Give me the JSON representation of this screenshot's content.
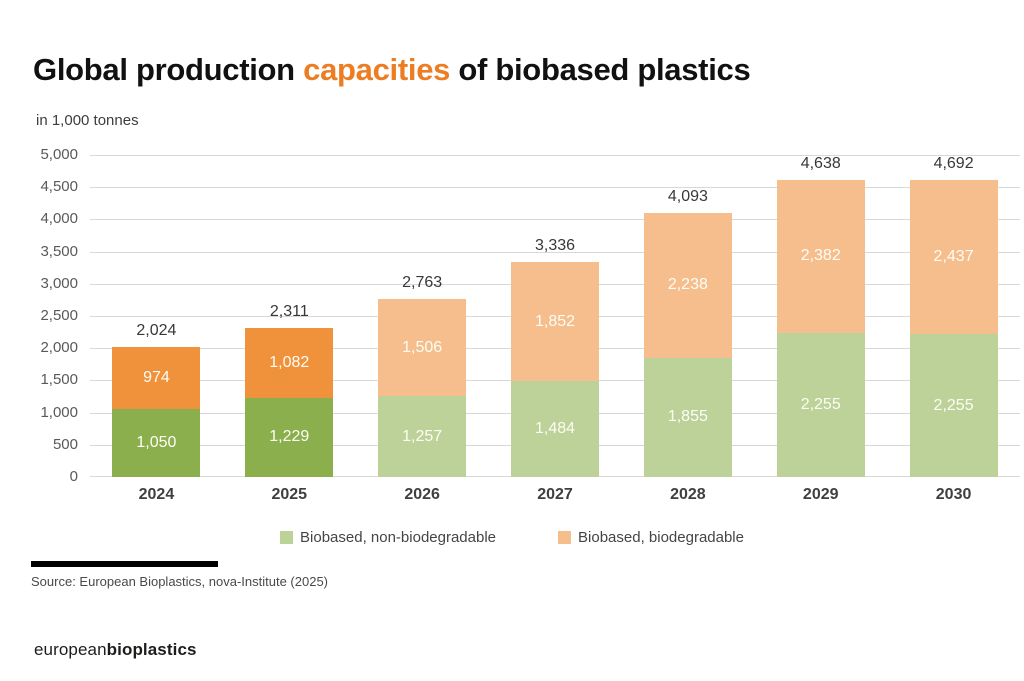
{
  "title": {
    "pre": "Global production ",
    "highlight": "capacities",
    "post": " of biobased plastics"
  },
  "subtitle": "in 1,000 tonnes",
  "colors": {
    "accent_orange": "#ED7D23",
    "actual_green": "#8CAF4D",
    "actual_orange": "#F0923B",
    "forecast_green": "#BDD298",
    "forecast_orange": "#F6BE8C",
    "grid": "#D8D8D8",
    "axis_text": "#595959",
    "total_text": "#383838",
    "segment_text": "#FDFDF6"
  },
  "chart_data": {
    "type": "bar",
    "stacked": true,
    "title": "Global production capacities of biobased plastics",
    "subtitle": "in 1,000 tonnes",
    "xlabel": "",
    "ylabel": "1,000 tonnes",
    "ylim": [
      0,
      5000
    ],
    "ytick_step": 500,
    "ytick_labels": [
      "0",
      "500",
      "1,000",
      "1,500",
      "2,000",
      "2,500",
      "3,000",
      "3,500",
      "4,000",
      "4,500",
      "5,000"
    ],
    "grid": true,
    "legend_position": "bottom",
    "categories": [
      "2024",
      "2025",
      "2026",
      "2027",
      "2028",
      "2029",
      "2030"
    ],
    "bar_styles": [
      "actual",
      "actual",
      "forecast",
      "forecast",
      "forecast",
      "forecast",
      "forecast"
    ],
    "series": [
      {
        "name": "Biobased, non-biodegradable",
        "values": [
          1050,
          1229,
          1257,
          1484,
          1855,
          2255,
          2255
        ],
        "labels": [
          "1,050",
          "1,229",
          "1,257",
          "1,484",
          "1,855",
          "2,255",
          "2,255"
        ]
      },
      {
        "name": "Biobased, biodegradable",
        "values": [
          974,
          1082,
          1506,
          1852,
          2238,
          2382,
          2437
        ],
        "labels": [
          "974",
          "1,082",
          "1,506",
          "1,852",
          "2,238",
          "2,382",
          "2,437"
        ]
      }
    ],
    "totals": [
      2024,
      2311,
      2763,
      3336,
      4093,
      4638,
      4692
    ],
    "total_labels": [
      "2,024",
      "2,311",
      "2,763",
      "3,336",
      "4,093",
      "4,638",
      "4,692"
    ]
  },
  "legend": {
    "items": [
      {
        "label": "Biobased, non-biodegradable",
        "swatch": "forecast_green"
      },
      {
        "label": "Biobased, biodegradable",
        "swatch": "forecast_orange"
      }
    ]
  },
  "source": "Source: European Bioplastics, nova-Institute (2025)",
  "logo": {
    "normal": "european",
    "bold": "bioplastics"
  }
}
